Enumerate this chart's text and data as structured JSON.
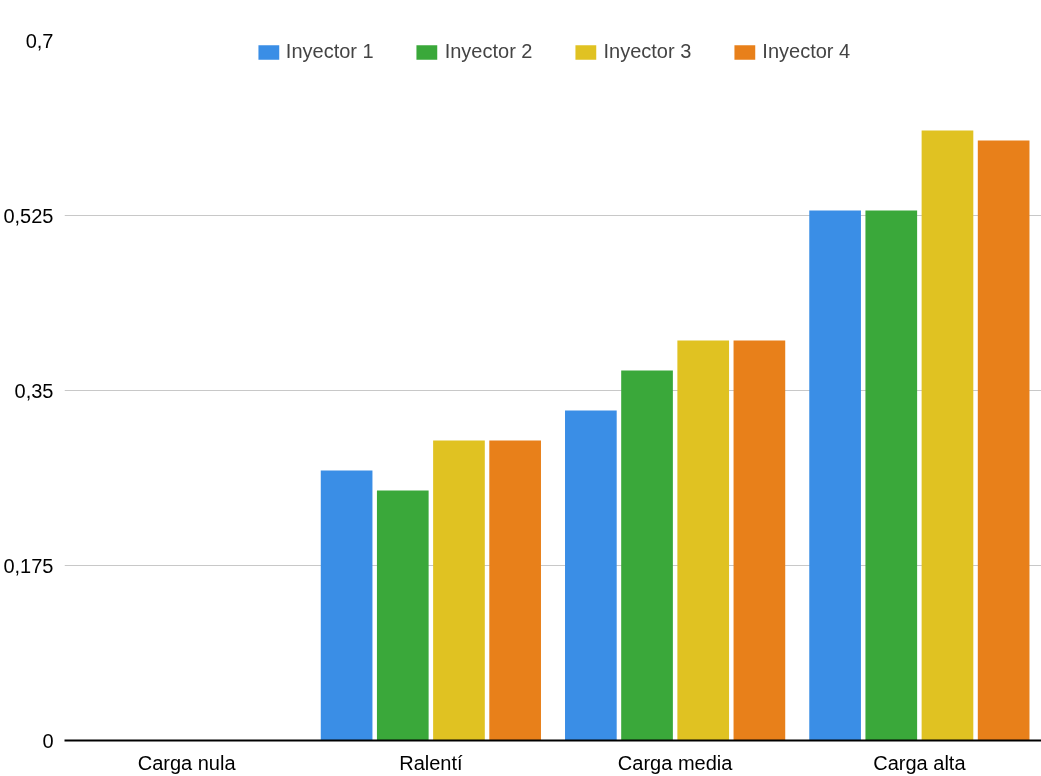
{
  "chart_data": {
    "type": "bar",
    "categories": [
      "Carga nula",
      "Ralentí",
      "Carga media",
      "Carga alta"
    ],
    "series": [
      {
        "name": "Inyector 1",
        "color": "#3a8ee6",
        "values": [
          0,
          0.27,
          0.33,
          0.53
        ]
      },
      {
        "name": "Inyector 2",
        "color": "#3aa83a",
        "values": [
          0,
          0.25,
          0.37,
          0.53
        ]
      },
      {
        "name": "Inyector 3",
        "color": "#e0c222",
        "values": [
          0,
          0.3,
          0.4,
          0.61
        ]
      },
      {
        "name": "Inyector 4",
        "color": "#e8801a",
        "values": [
          0,
          0.3,
          0.4,
          0.6
        ]
      }
    ],
    "ylim": [
      0,
      0.7
    ],
    "yticks": [
      {
        "value": 0,
        "label": "0"
      },
      {
        "value": 0.175,
        "label": "0,175"
      },
      {
        "value": 0.35,
        "label": "0,35"
      },
      {
        "value": 0.525,
        "label": "0,525"
      },
      {
        "value": 0.7,
        "label": "0,7"
      }
    ],
    "grid": "y",
    "legend": "top"
  }
}
